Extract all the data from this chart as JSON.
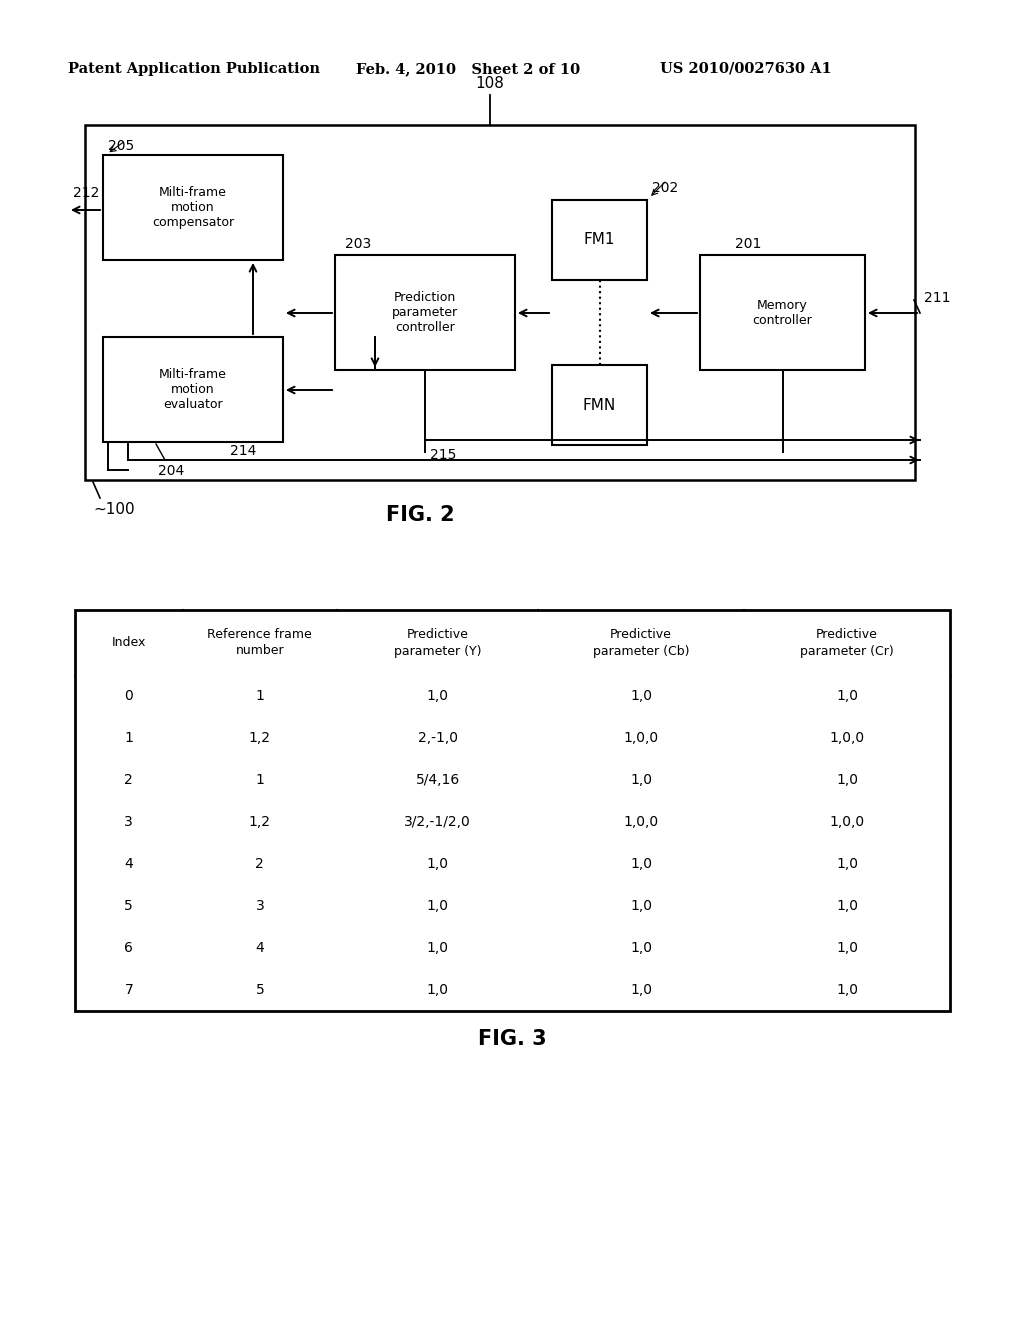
{
  "bg_color": "#ffffff",
  "header_left": "Patent Application Publication",
  "header_mid": "Feb. 4, 2010   Sheet 2 of 10",
  "header_right": "US 2010/0027630 A1",
  "fig2_label": "FIG. 2",
  "fig3_label": "FIG. 3",
  "table_headers": [
    "Index",
    "Reference frame\nnumber",
    "Predictive\nparameter (Y)",
    "Predictive\nparameter (Cb)",
    "Predictive\nparameter (Cr)"
  ],
  "table_rows": [
    [
      "0",
      "1",
      "1,0",
      "1,0",
      "1,0"
    ],
    [
      "1",
      "1,2",
      "2,-1,0",
      "1,0,0",
      "1,0,0"
    ],
    [
      "2",
      "1",
      "5/4,16",
      "1,0",
      "1,0"
    ],
    [
      "3",
      "1,2",
      "3/2,-1/2,0",
      "1,0,0",
      "1,0,0"
    ],
    [
      "4",
      "2",
      "1,0",
      "1,0",
      "1,0"
    ],
    [
      "5",
      "3",
      "1,0",
      "1,0",
      "1,0"
    ],
    [
      "6",
      "4",
      "1,0",
      "1,0",
      "1,0"
    ],
    [
      "7",
      "5",
      "1,0",
      "1,0",
      "1,0"
    ]
  ]
}
